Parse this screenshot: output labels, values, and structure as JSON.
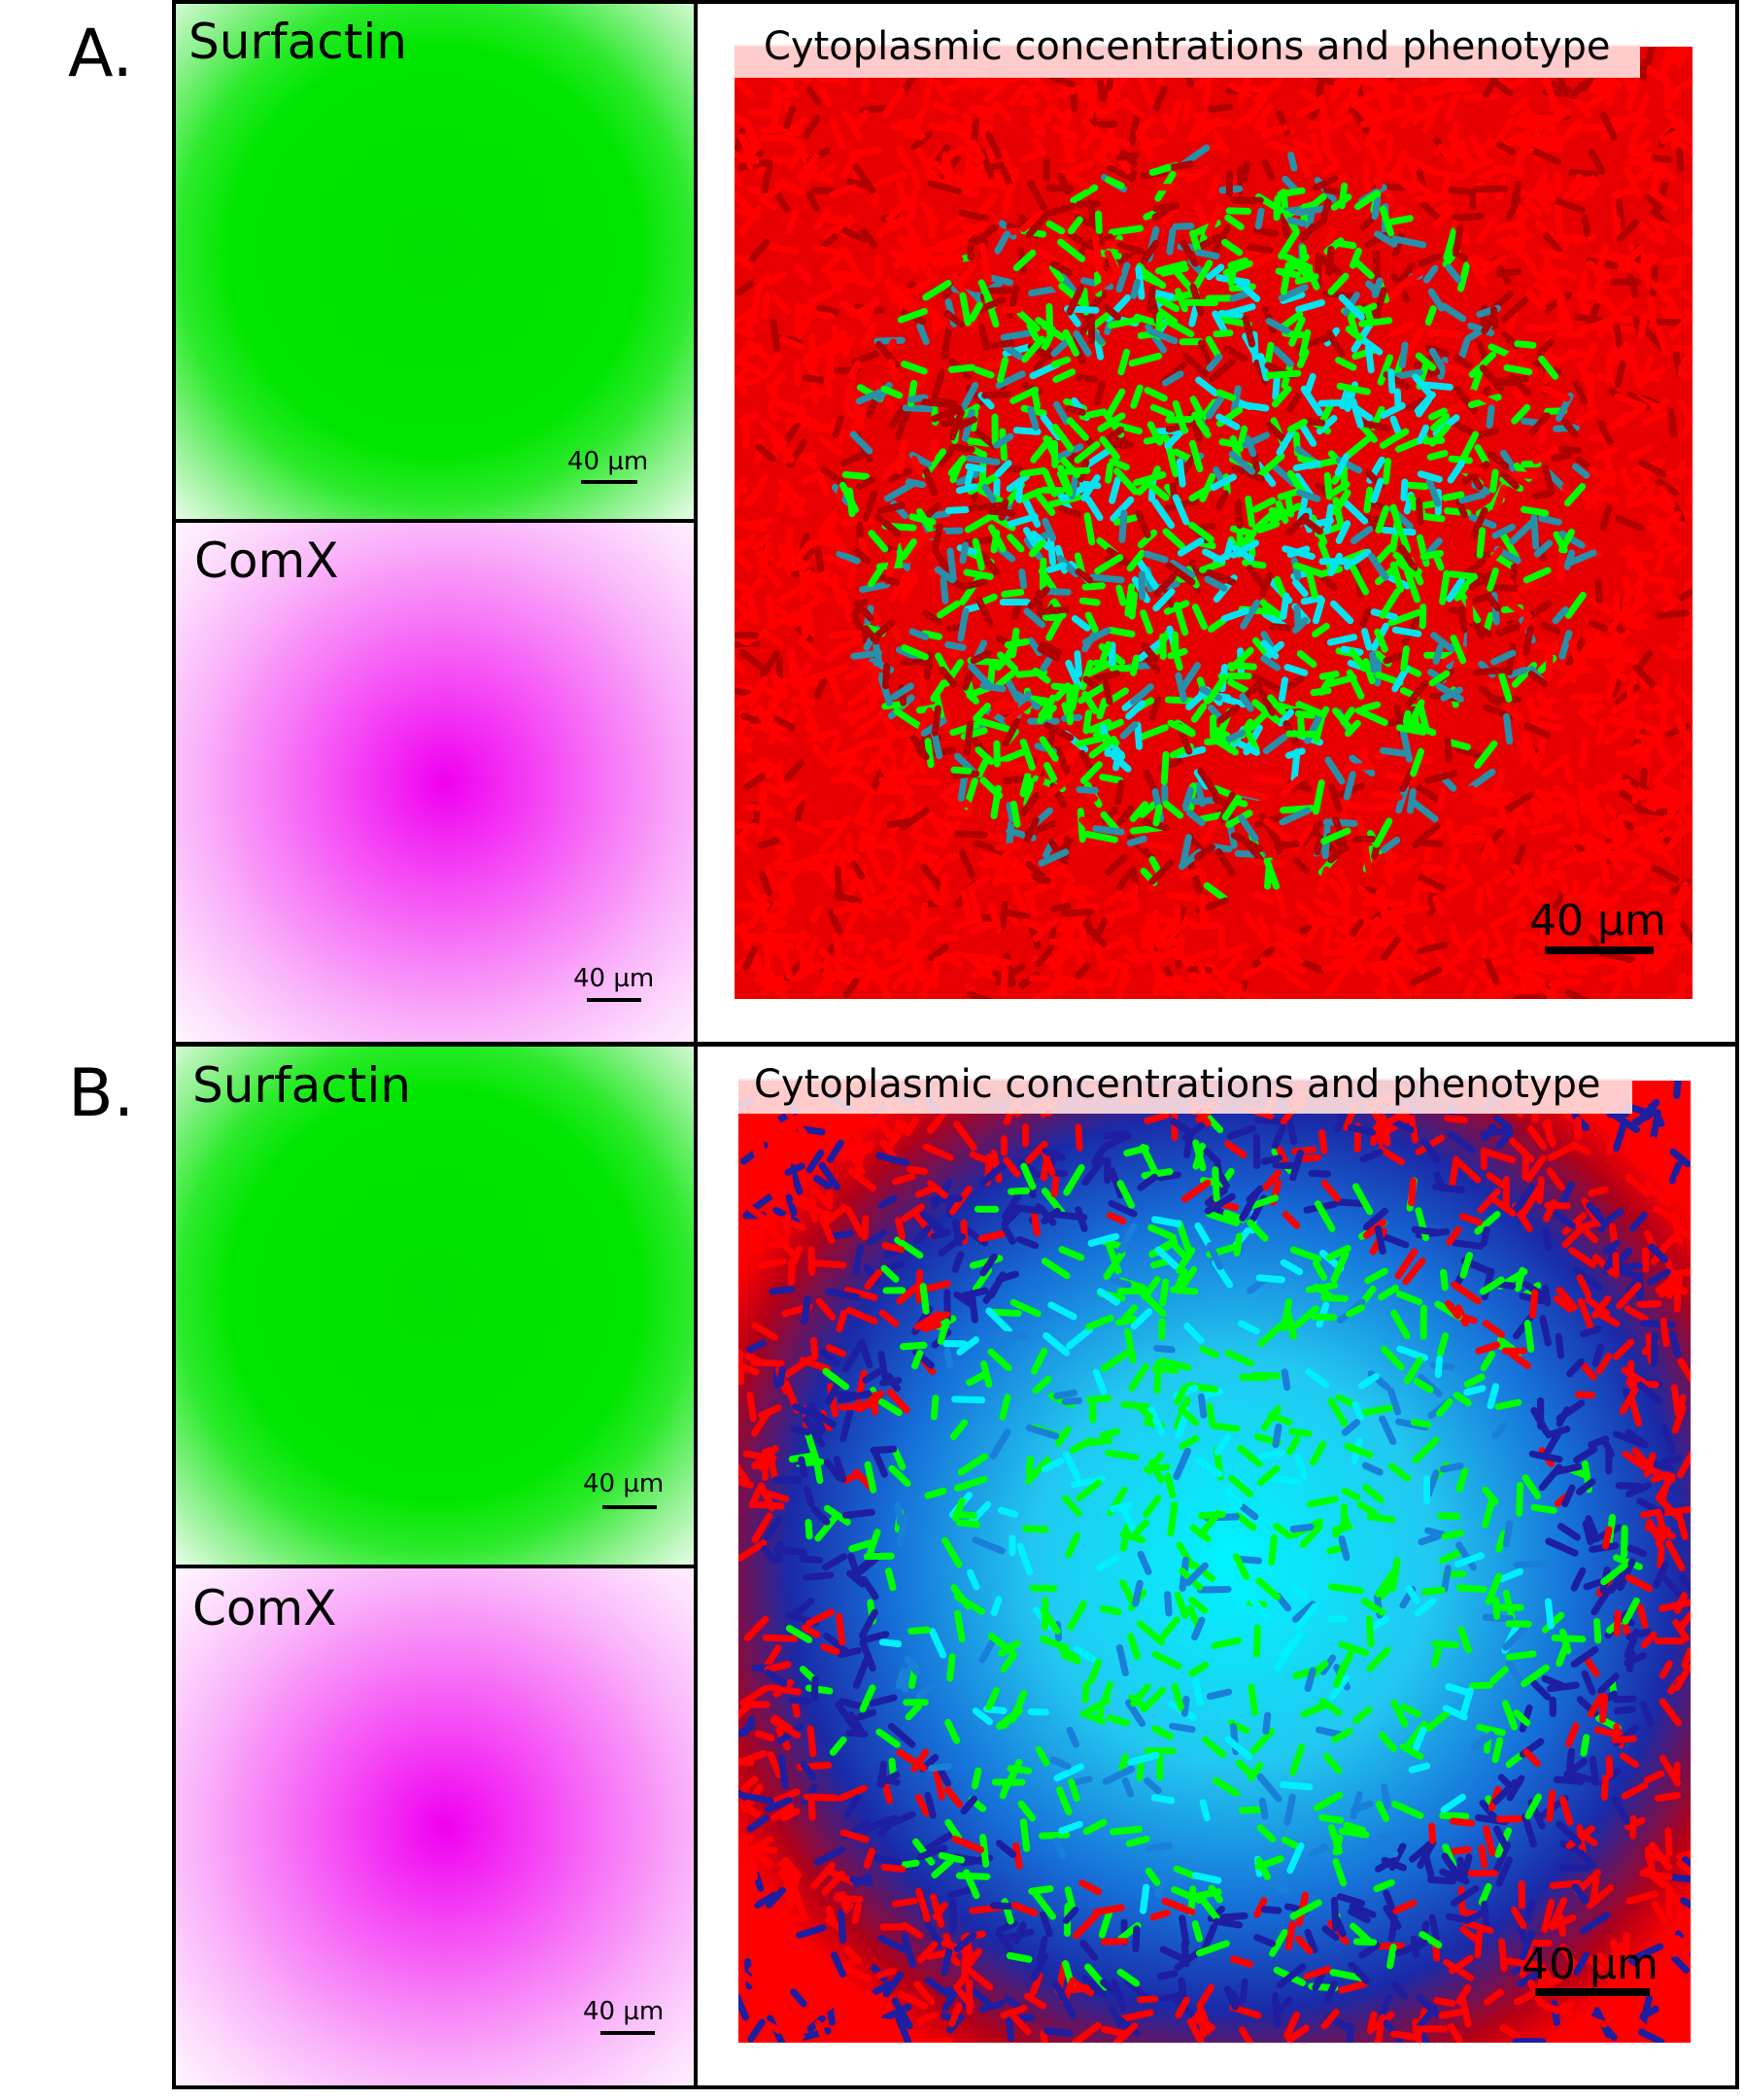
{
  "panels": [
    {
      "letter": "A.",
      "surfactin": {
        "title": "Surfactin",
        "scale_label": "40 µm",
        "color": "#00e600"
      },
      "comx": {
        "title": "ComX",
        "scale_label": "40 µm",
        "color": "#f000f0"
      },
      "cells": {
        "title": "Cytoplasmic concentrations and phenotype",
        "scale_label": "40 µm",
        "colors": [
          "#ff0000",
          "#00ff00",
          "#00e5f0",
          "#2a8fa8",
          "#b00000"
        ]
      }
    },
    {
      "letter": "B.",
      "surfactin": {
        "title": "Surfactin",
        "scale_label": "40 µm",
        "color": "#00e600"
      },
      "comx": {
        "title": "ComX",
        "scale_label": "40 µm",
        "color": "#f000f0"
      },
      "cells": {
        "title": "Cytoplasmic concentrations and phenotype",
        "scale_label": "40 µm",
        "colors": [
          "#ff0000",
          "#00ff00",
          "#00f0ff",
          "#1a7fd8",
          "#1e1ea0"
        ]
      }
    }
  ]
}
